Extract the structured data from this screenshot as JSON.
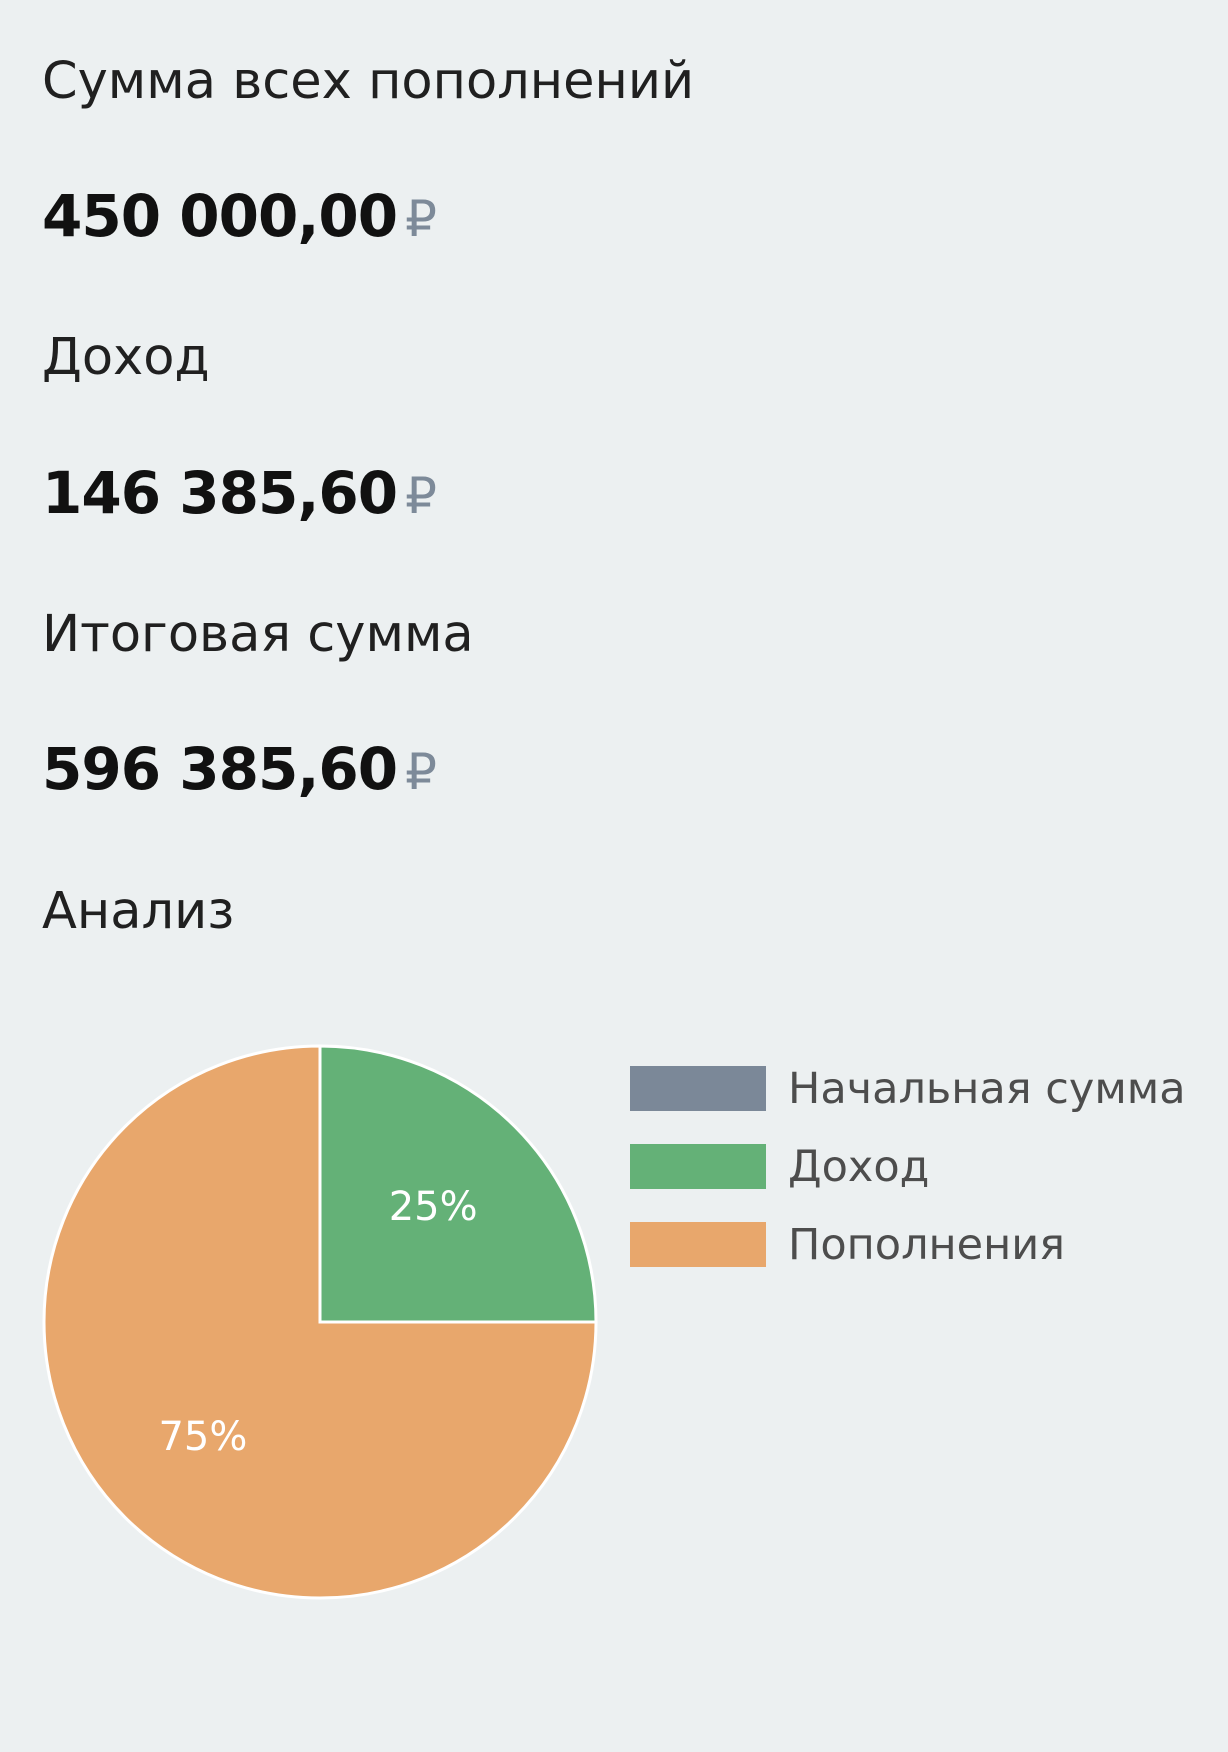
{
  "summary": {
    "deposits_label": "Сумма всех пополнений",
    "deposits_value": "450 000,00",
    "income_label": "Доход",
    "income_value": "146 385,60",
    "total_label": "Итоговая сумма",
    "total_value": "596 385,60",
    "currency_symbol": "₽"
  },
  "analysis": {
    "title": "Анализ"
  },
  "colors": {
    "background": "#ecf0f1",
    "initial": "#7b8898",
    "income": "#64b177",
    "deposits": "#e8a76c",
    "currency": "#7d8a99"
  },
  "chart_data": {
    "type": "pie",
    "title": "",
    "slices": [
      {
        "name": "Начальная сумма",
        "value": 0,
        "label": "",
        "color": "#7b8898"
      },
      {
        "name": "Доход",
        "value": 25,
        "label": "25%",
        "color": "#64b177"
      },
      {
        "name": "Пополнения",
        "value": 75,
        "label": "75%",
        "color": "#e8a76c"
      }
    ],
    "legend": {
      "position": "right",
      "entries": [
        "Начальная сумма",
        "Доход",
        "Пополнения"
      ]
    }
  }
}
